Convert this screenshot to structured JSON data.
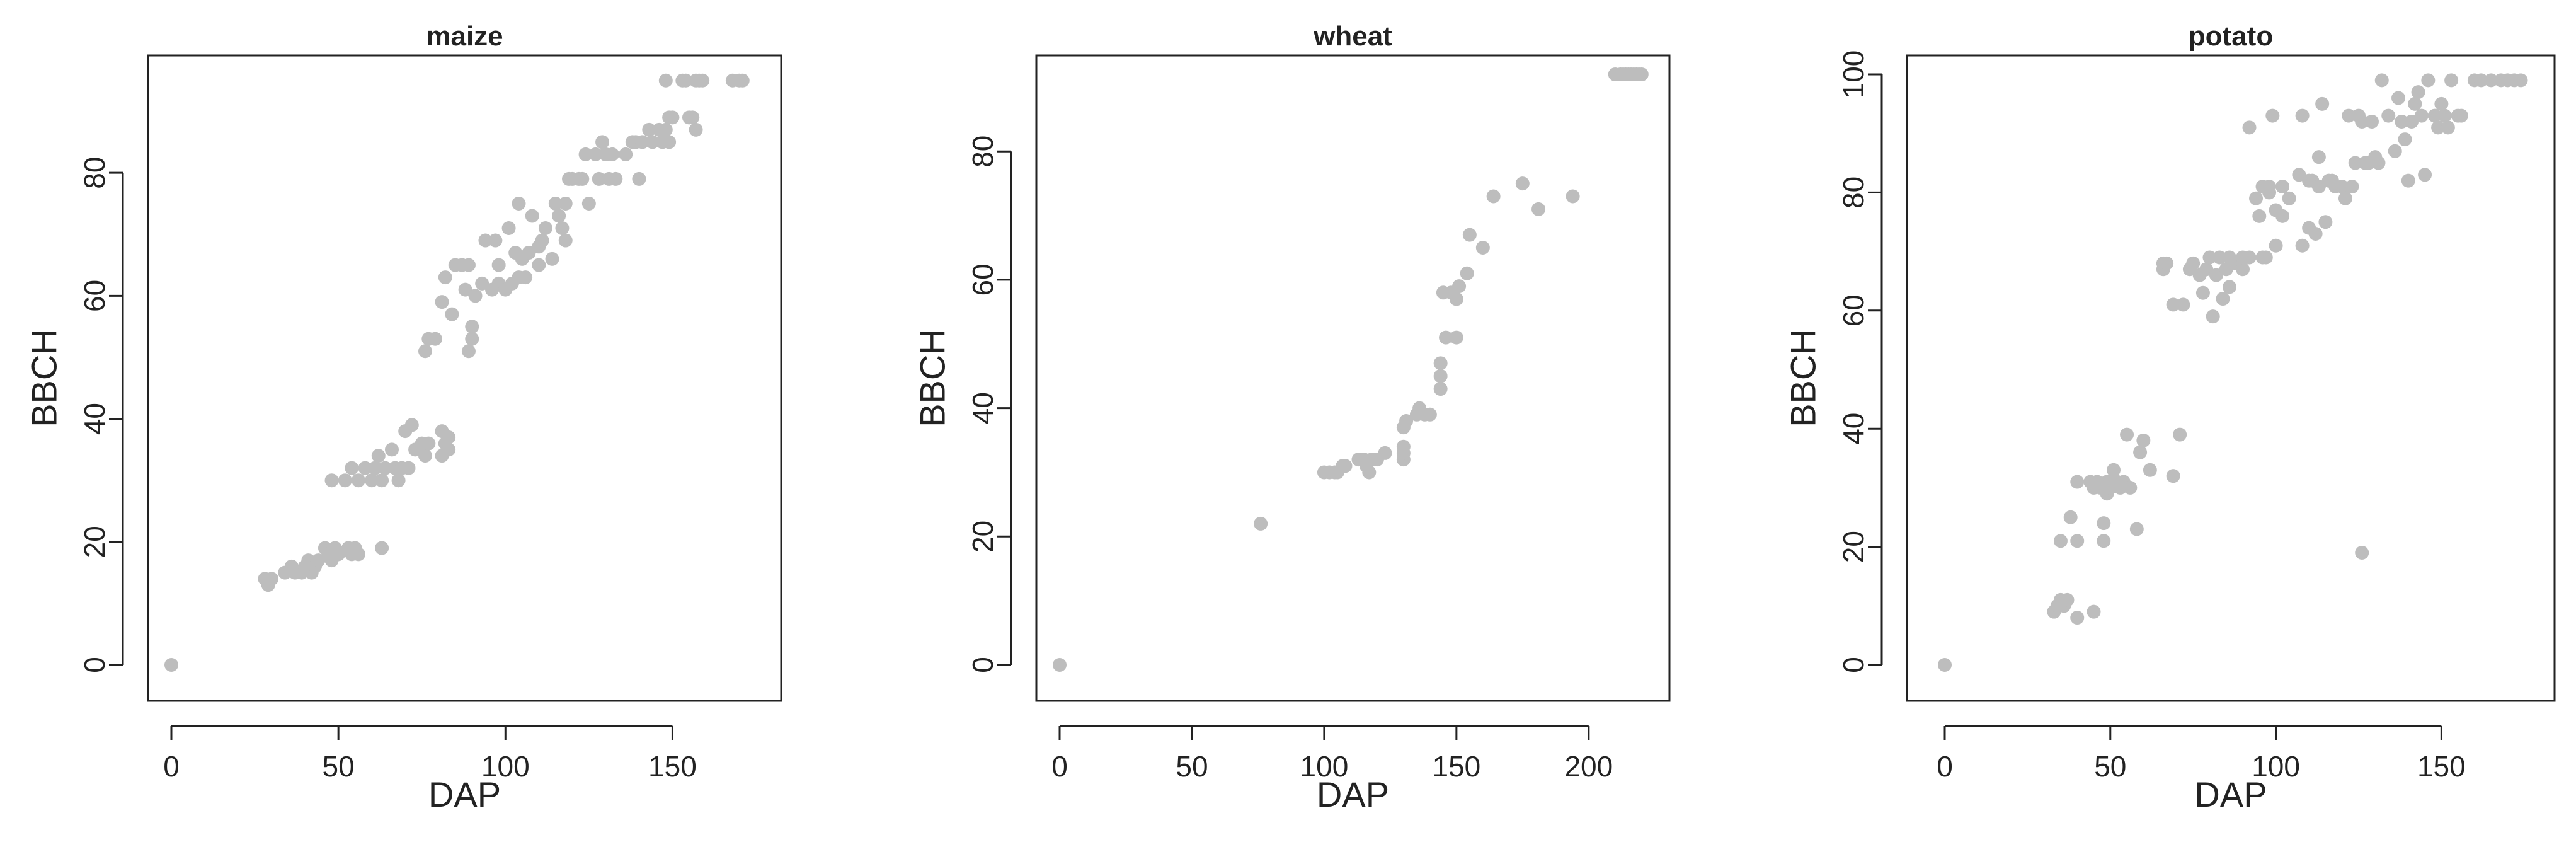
{
  "chart_data": [
    {
      "type": "scatter",
      "title": "maize",
      "xlabel": "DAP",
      "ylabel": "BBCH",
      "xlim": [
        0,
        175
      ],
      "ylim": [
        0,
        96
      ],
      "xticks": [
        0,
        50,
        100,
        150
      ],
      "yticks": [
        0,
        20,
        40,
        60,
        80
      ],
      "marker_color": "#bdbdbd",
      "grid": false,
      "points": [
        [
          0,
          0
        ],
        [
          28,
          14
        ],
        [
          29,
          13
        ],
        [
          30,
          14
        ],
        [
          34,
          15
        ],
        [
          36,
          16
        ],
        [
          37,
          15
        ],
        [
          39,
          15
        ],
        [
          40,
          16
        ],
        [
          41,
          17
        ],
        [
          42,
          15
        ],
        [
          43,
          16
        ],
        [
          44,
          17
        ],
        [
          46,
          19
        ],
        [
          47,
          18
        ],
        [
          48,
          17
        ],
        [
          49,
          19
        ],
        [
          50,
          18
        ],
        [
          53,
          19
        ],
        [
          54,
          18
        ],
        [
          55,
          19
        ],
        [
          56,
          18
        ],
        [
          63,
          19
        ],
        [
          48,
          30
        ],
        [
          52,
          30
        ],
        [
          54,
          32
        ],
        [
          56,
          30
        ],
        [
          58,
          32
        ],
        [
          60,
          30
        ],
        [
          61,
          32
        ],
        [
          62,
          34
        ],
        [
          63,
          30
        ],
        [
          64,
          32
        ],
        [
          66,
          35
        ],
        [
          67,
          32
        ],
        [
          68,
          30
        ],
        [
          69,
          32
        ],
        [
          70,
          38
        ],
        [
          71,
          32
        ],
        [
          72,
          39
        ],
        [
          73,
          35
        ],
        [
          75,
          36
        ],
        [
          76,
          34
        ],
        [
          77,
          36
        ],
        [
          81,
          34
        ],
        [
          81,
          38
        ],
        [
          82,
          36
        ],
        [
          83,
          37
        ],
        [
          83,
          35
        ],
        [
          76,
          51
        ],
        [
          77,
          53
        ],
        [
          79,
          53
        ],
        [
          81,
          59
        ],
        [
          82,
          63
        ],
        [
          84,
          57
        ],
        [
          85,
          65
        ],
        [
          87,
          65
        ],
        [
          88,
          61
        ],
        [
          89,
          65
        ],
        [
          89,
          51
        ],
        [
          90,
          55
        ],
        [
          90,
          53
        ],
        [
          91,
          60
        ],
        [
          93,
          62
        ],
        [
          94,
          69
        ],
        [
          96,
          61
        ],
        [
          97,
          69
        ],
        [
          98,
          62
        ],
        [
          98,
          65
        ],
        [
          100,
          61
        ],
        [
          101,
          71
        ],
        [
          102,
          62
        ],
        [
          103,
          67
        ],
        [
          104,
          63
        ],
        [
          104,
          75
        ],
        [
          105,
          66
        ],
        [
          106,
          63
        ],
        [
          107,
          67
        ],
        [
          108,
          73
        ],
        [
          110,
          68
        ],
        [
          110,
          65
        ],
        [
          111,
          69
        ],
        [
          112,
          71
        ],
        [
          114,
          66
        ],
        [
          115,
          75
        ],
        [
          116,
          73
        ],
        [
          117,
          71
        ],
        [
          118,
          75
        ],
        [
          118,
          69
        ],
        [
          119,
          79
        ],
        [
          120,
          79
        ],
        [
          122,
          79
        ],
        [
          123,
          79
        ],
        [
          124,
          83
        ],
        [
          125,
          75
        ],
        [
          127,
          83
        ],
        [
          128,
          79
        ],
        [
          129,
          85
        ],
        [
          130,
          83
        ],
        [
          131,
          79
        ],
        [
          132,
          83
        ],
        [
          133,
          79
        ],
        [
          136,
          83
        ],
        [
          138,
          85
        ],
        [
          139,
          85
        ],
        [
          140,
          79
        ],
        [
          141,
          85
        ],
        [
          143,
          87
        ],
        [
          144,
          85
        ],
        [
          146,
          87
        ],
        [
          147,
          85
        ],
        [
          148,
          87
        ],
        [
          149,
          85
        ],
        [
          148,
          95
        ],
        [
          149,
          89
        ],
        [
          150,
          89
        ],
        [
          153,
          95
        ],
        [
          154,
          95
        ],
        [
          155,
          89
        ],
        [
          156,
          89
        ],
        [
          157,
          95
        ],
        [
          157,
          87
        ],
        [
          158,
          95
        ],
        [
          159,
          95
        ],
        [
          168,
          95
        ],
        [
          170,
          95
        ],
        [
          171,
          95
        ]
      ]
    },
    {
      "type": "scatter",
      "title": "wheat",
      "xlabel": "DAP",
      "ylabel": "BBCH",
      "xlim": [
        0,
        221
      ],
      "ylim": [
        0,
        92
      ],
      "xticks": [
        0,
        50,
        100,
        150,
        200
      ],
      "yticks": [
        0,
        20,
        40,
        60,
        80
      ],
      "marker_color": "#bdbdbd",
      "grid": false,
      "points": [
        [
          0,
          0
        ],
        [
          76,
          22
        ],
        [
          100,
          30
        ],
        [
          102,
          30
        ],
        [
          104,
          30
        ],
        [
          105,
          30
        ],
        [
          107,
          31
        ],
        [
          108,
          31
        ],
        [
          113,
          32
        ],
        [
          115,
          32
        ],
        [
          116,
          31
        ],
        [
          117,
          30
        ],
        [
          118,
          32
        ],
        [
          120,
          32
        ],
        [
          123,
          33
        ],
        [
          130,
          32
        ],
        [
          130,
          33
        ],
        [
          130,
          34
        ],
        [
          130,
          37
        ],
        [
          131,
          38
        ],
        [
          135,
          39
        ],
        [
          136,
          40
        ],
        [
          138,
          39
        ],
        [
          140,
          39
        ],
        [
          144,
          43
        ],
        [
          144,
          45
        ],
        [
          144,
          47
        ],
        [
          145,
          58
        ],
        [
          146,
          51
        ],
        [
          148,
          58
        ],
        [
          150,
          51
        ],
        [
          150,
          57
        ],
        [
          151,
          59
        ],
        [
          154,
          61
        ],
        [
          155,
          67
        ],
        [
          160,
          65
        ],
        [
          164,
          73
        ],
        [
          175,
          75
        ],
        [
          181,
          71
        ],
        [
          194,
          73
        ],
        [
          210,
          92
        ],
        [
          212,
          92
        ],
        [
          213,
          92
        ],
        [
          214,
          92
        ],
        [
          215,
          92
        ],
        [
          216,
          92
        ],
        [
          217,
          92
        ],
        [
          218,
          92
        ],
        [
          219,
          92
        ],
        [
          220,
          92
        ]
      ]
    },
    {
      "type": "scatter",
      "title": "potato",
      "xlabel": "DAP",
      "ylabel": "BBCH",
      "xlim": [
        0,
        176
      ],
      "ylim": [
        0,
        100
      ],
      "xticks": [
        0,
        50,
        100,
        150
      ],
      "yticks": [
        0,
        20,
        40,
        60,
        80,
        100
      ],
      "marker_color": "#bdbdbd",
      "grid": false,
      "points": [
        [
          0,
          0
        ],
        [
          33,
          9
        ],
        [
          34,
          10
        ],
        [
          35,
          11
        ],
        [
          36,
          10
        ],
        [
          37,
          11
        ],
        [
          40,
          8
        ],
        [
          45,
          9
        ],
        [
          35,
          21
        ],
        [
          38,
          25
        ],
        [
          40,
          21
        ],
        [
          40,
          31
        ],
        [
          44,
          31
        ],
        [
          45,
          30
        ],
        [
          46,
          31
        ],
        [
          47,
          30
        ],
        [
          48,
          21
        ],
        [
          48,
          24
        ],
        [
          49,
          31
        ],
        [
          49,
          29
        ],
        [
          50,
          31
        ],
        [
          50,
          30
        ],
        [
          51,
          33
        ],
        [
          52,
          31
        ],
        [
          53,
          30
        ],
        [
          54,
          31
        ],
        [
          55,
          39
        ],
        [
          56,
          30
        ],
        [
          58,
          23
        ],
        [
          59,
          36
        ],
        [
          60,
          38
        ],
        [
          62,
          33
        ],
        [
          69,
          32
        ],
        [
          71,
          39
        ],
        [
          126,
          19
        ],
        [
          66,
          67
        ],
        [
          66,
          68
        ],
        [
          67,
          68
        ],
        [
          69,
          61
        ],
        [
          72,
          61
        ],
        [
          74,
          67
        ],
        [
          75,
          68
        ],
        [
          77,
          66
        ],
        [
          78,
          63
        ],
        [
          79,
          67
        ],
        [
          80,
          69
        ],
        [
          81,
          59
        ],
        [
          82,
          66
        ],
        [
          83,
          69
        ],
        [
          84,
          62
        ],
        [
          85,
          67
        ],
        [
          86,
          64
        ],
        [
          86,
          69
        ],
        [
          88,
          68
        ],
        [
          90,
          67
        ],
        [
          90,
          69
        ],
        [
          92,
          69
        ],
        [
          94,
          79
        ],
        [
          95,
          76
        ],
        [
          96,
          69
        ],
        [
          97,
          69
        ],
        [
          98,
          80
        ],
        [
          92,
          91
        ],
        [
          96,
          81
        ],
        [
          98,
          81
        ],
        [
          99,
          93
        ],
        [
          100,
          71
        ],
        [
          100,
          77
        ],
        [
          102,
          81
        ],
        [
          102,
          76
        ],
        [
          104,
          79
        ],
        [
          107,
          83
        ],
        [
          108,
          71
        ],
        [
          108,
          93
        ],
        [
          110,
          74
        ],
        [
          110,
          82
        ],
        [
          111,
          82
        ],
        [
          112,
          73
        ],
        [
          113,
          81
        ],
        [
          113,
          86
        ],
        [
          114,
          95
        ],
        [
          115,
          75
        ],
        [
          116,
          82
        ],
        [
          117,
          82
        ],
        [
          118,
          81
        ],
        [
          120,
          81
        ],
        [
          121,
          79
        ],
        [
          122,
          93
        ],
        [
          123,
          81
        ],
        [
          124,
          85
        ],
        [
          125,
          93
        ],
        [
          126,
          92
        ],
        [
          127,
          85
        ],
        [
          128,
          85
        ],
        [
          129,
          92
        ],
        [
          130,
          86
        ],
        [
          131,
          85
        ],
        [
          132,
          99
        ],
        [
          134,
          93
        ],
        [
          136,
          87
        ],
        [
          137,
          96
        ],
        [
          138,
          92
        ],
        [
          139,
          89
        ],
        [
          140,
          82
        ],
        [
          141,
          92
        ],
        [
          142,
          95
        ],
        [
          143,
          97
        ],
        [
          144,
          93
        ],
        [
          145,
          83
        ],
        [
          146,
          99
        ],
        [
          148,
          93
        ],
        [
          149,
          91
        ],
        [
          150,
          95
        ],
        [
          151,
          93
        ],
        [
          152,
          91
        ],
        [
          153,
          99
        ],
        [
          155,
          93
        ],
        [
          156,
          93
        ],
        [
          160,
          99
        ],
        [
          162,
          99
        ],
        [
          165,
          99
        ],
        [
          168,
          99
        ],
        [
          170,
          99
        ],
        [
          172,
          99
        ],
        [
          174,
          99
        ]
      ]
    }
  ]
}
